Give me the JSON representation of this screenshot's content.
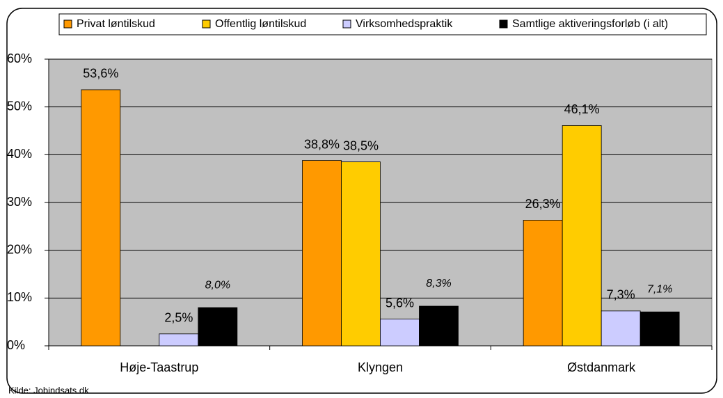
{
  "chart_data": {
    "type": "bar",
    "categories": [
      "Høje-Taastrup",
      "Klyngen",
      "Østdanmark"
    ],
    "series": [
      {
        "name": "Privat løntilskud",
        "color": "#ff9900",
        "values": [
          53.6,
          38.8,
          26.3
        ],
        "value_labels": [
          "53,6%",
          "38,8%",
          "26,3%"
        ]
      },
      {
        "name": "Offentlig løntilskud",
        "color": "#ffcc00",
        "values": [
          null,
          38.5,
          46.1
        ],
        "value_labels": [
          null,
          "38,5%",
          "46,1%"
        ]
      },
      {
        "name": "Virksomhedspraktik",
        "color": "#ccccff",
        "values": [
          2.5,
          5.6,
          7.3
        ],
        "value_labels": [
          "2,5%",
          "5,6%",
          "7,3%"
        ]
      },
      {
        "name": "Samtlige aktiveringsforløb (i alt)",
        "color": "#000000",
        "values": [
          8.0,
          8.3,
          7.1
        ],
        "value_labels": [
          "8,0%",
          "8,3%",
          "7,1%"
        ]
      }
    ],
    "ylim": [
      0,
      60
    ],
    "yticks": [
      {
        "value": 0,
        "label": "0%"
      },
      {
        "value": 10,
        "label": "10%"
      },
      {
        "value": 20,
        "label": "20%"
      },
      {
        "value": 30,
        "label": "30%"
      },
      {
        "value": 40,
        "label": "40%"
      },
      {
        "value": 50,
        "label": "50%"
      },
      {
        "value": 60,
        "label": "60%"
      }
    ],
    "grid": true,
    "legend": "top",
    "source": "Kilde: Jobindsats.dk"
  }
}
